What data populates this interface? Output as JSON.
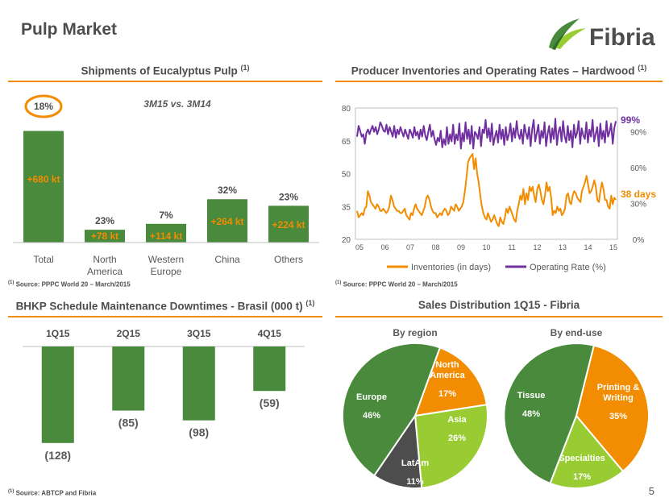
{
  "page": {
    "title": "Pulp Market",
    "logo_text": "Fibria",
    "page_number": "5"
  },
  "colors": {
    "green": "#4a8a3c",
    "orange": "#f28c00",
    "purple": "#7030a0",
    "lightgreen": "#99cc33",
    "dark": "#4d4d4d",
    "grey": "#595959"
  },
  "chart_data": [
    {
      "id": "shipments",
      "type": "bar",
      "title": "Shipments of Eucalyptus Pulp",
      "title_sup": "(1)",
      "subtitle": "3M15 vs. 3M14",
      "categories": [
        "Total",
        "North America",
        "Western Europe",
        "China",
        "Others"
      ],
      "values": [
        680,
        78,
        114,
        264,
        224
      ],
      "value_labels": [
        "+680 kt",
        "+78 kt",
        "+114 kt",
        "+264 kt",
        "+224 kt"
      ],
      "pct_labels": [
        "18%",
        "23%",
        "7%",
        "32%",
        "23%"
      ],
      "ylim": [
        0,
        820
      ],
      "source": "Source: PPPC World 20 – March/2015",
      "source_sup": "(1)"
    },
    {
      "id": "inventories",
      "type": "line",
      "title": "Producer Inventories and Operating Rates – Hardwood",
      "title_sup": "(1)",
      "x_ticks": [
        "05",
        "06",
        "07",
        "08",
        "09",
        "10",
        "11",
        "12",
        "13",
        "14",
        "15"
      ],
      "y_left_ticks": [
        "80",
        "65",
        "50",
        "35",
        "20"
      ],
      "y_left_range": [
        20,
        80
      ],
      "y_right_ticks": [
        "90%",
        "60%",
        "30%",
        "0%"
      ],
      "y_right_range": [
        0,
        110
      ],
      "series": [
        {
          "name": "Inventories (in days)",
          "color": "#f28c00",
          "end_label": "38 days",
          "values": [
            33,
            30,
            31,
            32,
            31,
            34,
            35,
            42,
            40,
            37,
            36,
            35,
            34,
            36,
            35,
            33,
            33,
            34,
            33,
            32,
            33,
            35,
            40,
            38,
            35,
            34,
            33,
            33,
            32,
            32,
            33,
            34,
            31,
            30,
            29,
            32,
            31,
            34,
            36,
            34,
            33,
            32,
            31,
            33,
            35,
            39,
            40,
            38,
            35,
            33,
            32,
            32,
            30,
            31,
            32,
            31,
            33,
            34,
            33,
            31,
            32,
            35,
            34,
            33,
            36,
            35,
            33,
            34,
            35,
            37,
            42,
            48,
            55,
            57,
            58,
            59,
            52,
            57,
            50,
            46,
            40,
            35,
            32,
            30,
            29,
            32,
            30,
            28,
            29,
            31,
            29,
            27,
            26,
            30,
            28,
            27,
            30,
            34,
            32,
            35,
            33,
            31,
            29,
            28,
            33,
            36,
            40,
            38,
            43,
            36,
            41,
            38,
            44,
            42,
            44,
            40,
            37,
            43,
            45,
            42,
            38,
            36,
            40,
            46,
            42,
            44,
            39,
            31,
            33,
            32,
            35,
            33,
            34,
            31,
            32,
            34,
            40,
            41,
            37,
            36,
            40,
            42,
            41,
            39,
            38,
            37,
            42,
            44,
            46,
            49,
            45,
            41,
            42,
            44,
            47,
            44,
            38,
            37,
            42,
            46,
            43,
            38,
            38,
            35,
            34,
            40,
            36,
            39,
            38
          ]
        },
        {
          "name": "Operating Rate (%)",
          "color": "#7030a0",
          "end_label": "99%",
          "values": [
            86,
            95,
            91,
            86,
            88,
            80,
            89,
            92,
            88,
            92,
            95,
            90,
            94,
            88,
            92,
            98,
            95,
            91,
            90,
            96,
            88,
            94,
            90,
            86,
            95,
            85,
            92,
            88,
            94,
            90,
            86,
            92,
            88,
            84,
            92,
            89,
            85,
            94,
            87,
            90,
            84,
            92,
            86,
            95,
            87,
            83,
            90,
            96,
            86,
            91,
            84,
            79,
            85,
            82,
            91,
            77,
            84,
            79,
            94,
            80,
            88,
            82,
            96,
            80,
            88,
            83,
            97,
            76,
            89,
            82,
            98,
            84,
            92,
            80,
            95,
            76,
            90,
            88,
            84,
            94,
            78,
            92,
            89,
            100,
            85,
            93,
            82,
            97,
            79,
            86,
            91,
            81,
            96,
            84,
            92,
            79,
            94,
            83,
            88,
            97,
            82,
            93,
            85,
            99,
            88,
            84,
            92,
            80,
            96,
            89,
            84,
            94,
            78,
            92,
            100,
            82,
            89,
            96,
            80,
            91,
            85,
            98,
            78,
            88,
            95,
            81,
            93,
            84,
            101,
            79,
            90,
            94,
            82,
            99,
            86,
            81,
            95,
            83,
            91,
            77,
            96,
            85,
            89,
            99,
            80,
            93,
            87,
            84,
            98,
            81,
            92,
            86,
            100,
            82,
            88,
            94,
            78,
            97,
            84,
            91,
            81,
            99,
            86,
            90,
            97,
            80,
            93,
            99
          ]
        }
      ],
      "source": "Source: PPPC World 20 – March/2015",
      "source_sup": "(1)"
    },
    {
      "id": "downtimes",
      "type": "bar",
      "title": "BHKP Schedule Maintenance Downtimes - Brasil (000 t)",
      "title_sup": "(1)",
      "categories": [
        "1Q15",
        "2Q15",
        "3Q15",
        "4Q15"
      ],
      "values": [
        -128,
        -85,
        -98,
        -59
      ],
      "value_labels": [
        "(128)",
        "(85)",
        "(98)",
        "(59)"
      ],
      "ylim": [
        -140,
        0
      ],
      "source": "Source: ABTCP and Fibria",
      "source_sup": "(1)"
    },
    {
      "id": "region_pie",
      "type": "pie",
      "title": "Sales Distribution 1Q15 - Fibria",
      "subtitle": "By region",
      "slices": [
        {
          "label": "North America",
          "pct_label": "17%",
          "value": 17,
          "color": "#f28c00"
        },
        {
          "label": "Asia",
          "pct_label": "26%",
          "value": 26,
          "color": "#99cc33"
        },
        {
          "label": "LatAm",
          "pct_label": "11%",
          "value": 11,
          "color": "#4d4d4d"
        },
        {
          "label": "Europe",
          "pct_label": "46%",
          "value": 46,
          "color": "#4a8a3c"
        }
      ]
    },
    {
      "id": "enduse_pie",
      "type": "pie",
      "subtitle": "By end-use",
      "slices": [
        {
          "label": "Printing & Writing",
          "pct_label": "35%",
          "value": 35,
          "color": "#f28c00"
        },
        {
          "label": "Specialties",
          "pct_label": "17%",
          "value": 17,
          "color": "#99cc33"
        },
        {
          "label": "Tissue",
          "pct_label": "48%",
          "value": 48,
          "color": "#4a8a3c"
        }
      ]
    }
  ]
}
